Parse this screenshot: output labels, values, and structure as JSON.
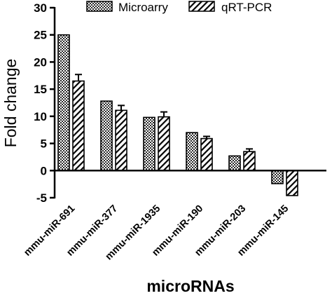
{
  "chart_data": {
    "type": "bar",
    "title": "",
    "xlabel": "microRNAs",
    "ylabel": "Fold change",
    "ylim": [
      -5,
      30
    ],
    "yticks": [
      -5,
      0,
      5,
      10,
      15,
      20,
      25,
      30
    ],
    "ytick_labels": [
      "-5",
      "0",
      "5",
      "10",
      "15",
      "20",
      "25",
      "30"
    ],
    "grid": false,
    "legend_position": "top-right",
    "categories": [
      "mmu-miR-691",
      "mmu-miR-377",
      "mmu-miR-1935",
      "mmu-miR-190",
      "mmu-miR-203",
      "mmu-miR-145"
    ],
    "series": [
      {
        "name": "Microarry",
        "pattern": "crosshatch",
        "values": [
          25.0,
          12.8,
          9.8,
          7.0,
          2.7,
          -2.4
        ],
        "errors": [
          0,
          0,
          0,
          0,
          0,
          0
        ]
      },
      {
        "name": "qRT-PCR",
        "pattern": "diagonal",
        "values": [
          16.5,
          11.1,
          9.9,
          5.9,
          3.5,
          -4.6
        ],
        "errors": [
          1.2,
          0.9,
          0.9,
          0.4,
          0.5,
          0
        ]
      }
    ]
  }
}
